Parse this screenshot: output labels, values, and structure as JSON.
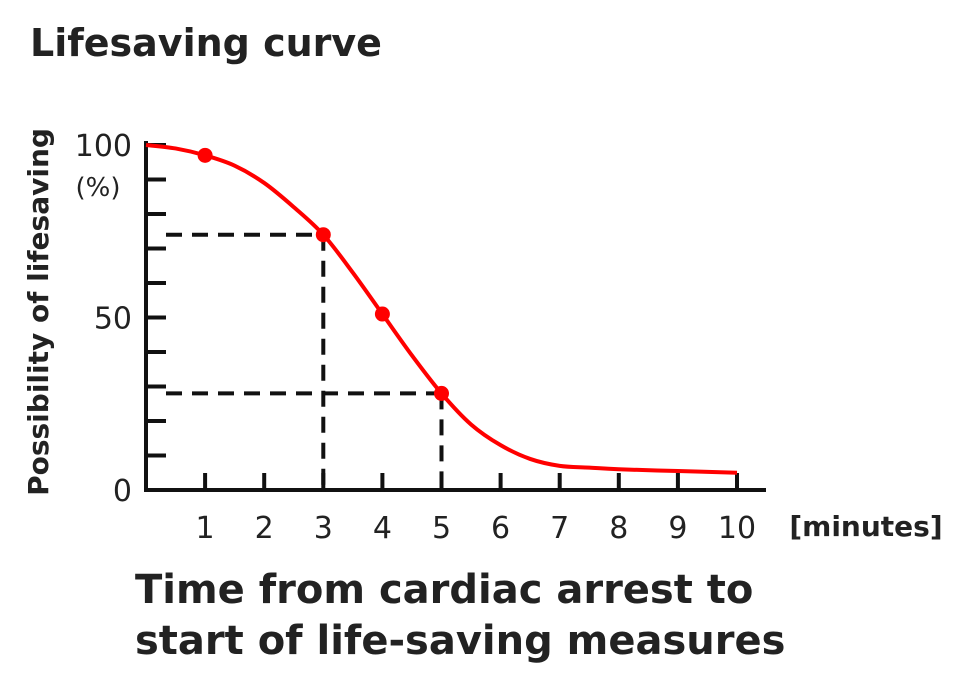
{
  "chart_data": {
    "type": "line",
    "title": "Lifesaving curve",
    "ylabel": "Possibility of lifesaving",
    "y_unit_label": "(%)",
    "x_unit_label": "[minutes]",
    "xlabel_lines": [
      "Time from cardiac arrest to",
      "start of life-saving measures"
    ],
    "xlim": [
      0,
      10
    ],
    "ylim": [
      0,
      100
    ],
    "x_ticks": [
      1,
      2,
      3,
      4,
      5,
      6,
      7,
      8,
      9,
      10
    ],
    "y_tick_labels": [
      0,
      50,
      100
    ],
    "y_minor_ticks": [
      10,
      20,
      30,
      40,
      60,
      70,
      80,
      90
    ],
    "curve": {
      "color": "#ff0000",
      "x": [
        0,
        0.5,
        1,
        1.5,
        2,
        2.5,
        3,
        3.5,
        4,
        4.5,
        5,
        5.5,
        6,
        6.5,
        7,
        7.5,
        8,
        9,
        10
      ],
      "y": [
        100,
        99,
        97,
        94,
        89,
        82,
        74,
        63,
        51,
        39,
        28,
        19,
        13,
        9,
        7,
        6.5,
        6,
        5.5,
        5
      ]
    },
    "markers": {
      "color": "#ff0000",
      "x": [
        1,
        3,
        4,
        5
      ],
      "y": [
        97,
        74,
        51,
        28
      ]
    },
    "reference_lines": [
      {
        "x": 3,
        "y": 74
      },
      {
        "x": 5,
        "y": 28
      }
    ]
  }
}
